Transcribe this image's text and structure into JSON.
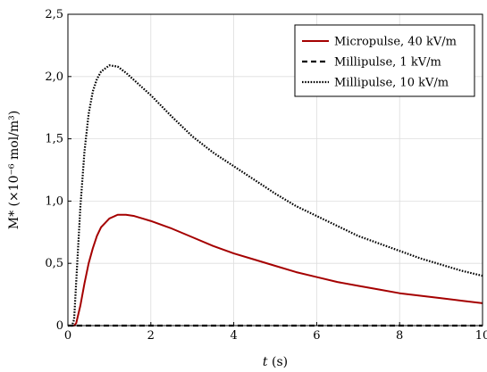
{
  "chart_data": {
    "type": "line",
    "title": "",
    "xlabel": "t (s)",
    "ylabel": "M* (×10⁻⁶ mol/m³)",
    "xlim": [
      0,
      10
    ],
    "ylim": [
      0,
      2.5
    ],
    "x_ticks": [
      0,
      2,
      4,
      6,
      8,
      10
    ],
    "x_tick_labels": [
      "0",
      "2",
      "4",
      "6",
      "8",
      "10"
    ],
    "y_ticks": [
      0,
      0.5,
      1.0,
      1.5,
      2.0,
      2.5
    ],
    "y_tick_labels": [
      "0",
      "0,5",
      "1,0",
      "1,5",
      "2,0",
      "2,5"
    ],
    "grid": true,
    "legend_position": "top-right",
    "x": [
      0,
      0.1,
      0.15,
      0.2,
      0.3,
      0.4,
      0.5,
      0.6,
      0.7,
      0.8,
      1.0,
      1.2,
      1.4,
      1.6,
      1.8,
      2.0,
      2.5,
      3.0,
      3.5,
      4.0,
      4.5,
      5.0,
      5.5,
      6.0,
      6.5,
      7.0,
      7.5,
      8.0,
      8.5,
      9.0,
      9.5,
      10.0
    ],
    "series": [
      {
        "name": "Micropulse, 40 kV/m",
        "color": "#a50000",
        "style": "solid",
        "values": [
          0,
          0,
          0,
          0.02,
          0.16,
          0.34,
          0.5,
          0.62,
          0.72,
          0.79,
          0.86,
          0.89,
          0.89,
          0.88,
          0.86,
          0.84,
          0.78,
          0.71,
          0.64,
          0.58,
          0.53,
          0.48,
          0.43,
          0.39,
          0.35,
          0.32,
          0.29,
          0.26,
          0.24,
          0.22,
          0.2,
          0.18
        ]
      },
      {
        "name": "Millipulse, 1 kV/m",
        "color": "#000000",
        "style": "dashed",
        "values": [
          0,
          0,
          0,
          0,
          0,
          0,
          0,
          0,
          0,
          0,
          0,
          0,
          0,
          0,
          0,
          0,
          0,
          0,
          0,
          0,
          0,
          0,
          0,
          0,
          0,
          0,
          0,
          0,
          0,
          0,
          0,
          0
        ]
      },
      {
        "name": "Millipulse, 10 kV/m",
        "color": "#000000",
        "style": "dotted",
        "values": [
          0,
          0,
          0.05,
          0.35,
          0.95,
          1.4,
          1.7,
          1.88,
          1.98,
          2.04,
          2.09,
          2.08,
          2.03,
          1.97,
          1.91,
          1.85,
          1.68,
          1.52,
          1.39,
          1.28,
          1.17,
          1.06,
          0.96,
          0.88,
          0.8,
          0.72,
          0.66,
          0.6,
          0.54,
          0.49,
          0.44,
          0.4
        ]
      }
    ]
  }
}
